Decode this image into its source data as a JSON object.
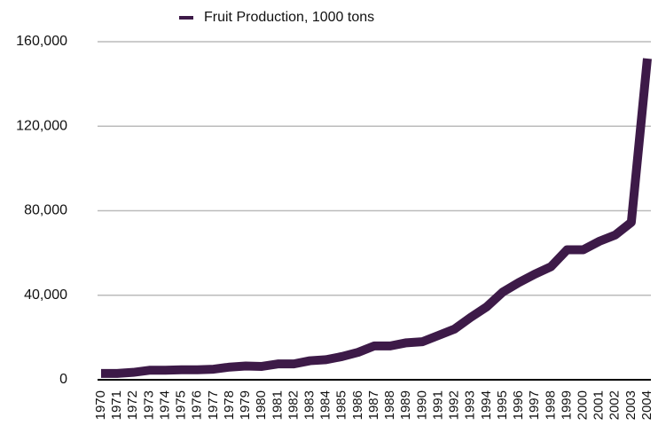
{
  "chart_data": {
    "type": "line",
    "categories": [
      "1970",
      "1971",
      "1972",
      "1973",
      "1974",
      "1975",
      "1976",
      "1977",
      "1978",
      "1979",
      "1980",
      "1981",
      "1982",
      "1983",
      "1984",
      "1985",
      "1986",
      "1987",
      "1988",
      "1989",
      "1990",
      "1991",
      "1992",
      "1993",
      "1994",
      "1995",
      "1996",
      "1997",
      "1998",
      "1999",
      "2000",
      "2001",
      "2002",
      "2003",
      "2004"
    ],
    "series": [
      {
        "name": "Fruit Production, 1000 tons",
        "color": "#3d1a48",
        "values": [
          3000,
          3000,
          3500,
          4500,
          4500,
          4700,
          4700,
          5000,
          6000,
          6500,
          6300,
          7500,
          7500,
          9000,
          9500,
          11000,
          13000,
          16000,
          16000,
          17500,
          18000,
          21000,
          24000,
          29500,
          34500,
          41500,
          46000,
          50000,
          53500,
          61500,
          61500,
          65500,
          68500,
          74500,
          152000
        ]
      }
    ],
    "ylim": [
      0,
      160000
    ],
    "yticks": [
      0,
      {
        "value": 40000,
        "label": "40,000"
      },
      {
        "value": 80000,
        "label": "80,000"
      },
      {
        "value": 120000,
        "label": "120,000"
      },
      {
        "value": 160000,
        "label": "160,000"
      }
    ],
    "grid": true,
    "legend": "top"
  }
}
